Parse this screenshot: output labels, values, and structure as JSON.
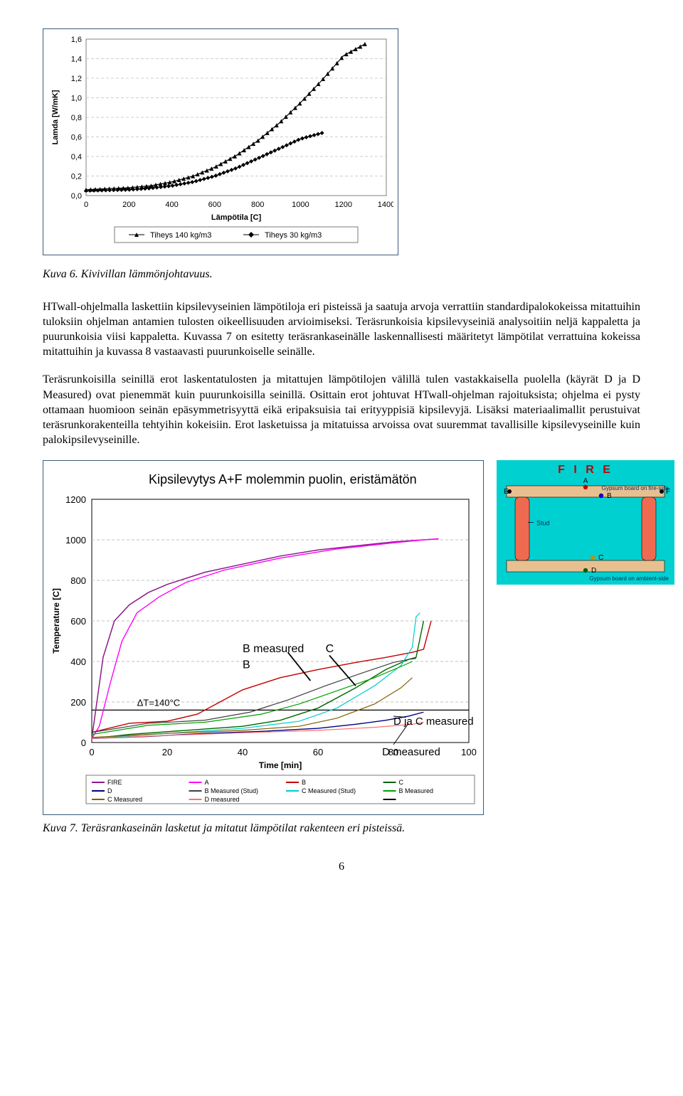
{
  "chart1": {
    "type": "line-scatter",
    "ylabel": "Lamda [W/mK]",
    "xlabel": "Lämpötila [C]",
    "xlim": [
      0,
      1400
    ],
    "xtick_step": 200,
    "ylim": [
      0,
      1.6
    ],
    "ytick_step": 0.2,
    "background": "#ffffff",
    "grid_color": "#c0c0c0",
    "axis_color": "#808080",
    "label_fontsize": 11,
    "tick_fontsize": 11,
    "series": [
      {
        "name": "Tiheys 140 kg/m3",
        "color": "#000000",
        "marker": "triangle",
        "marker_size": 3,
        "line_width": 1.2,
        "x": [
          0,
          100,
          200,
          300,
          400,
          500,
          600,
          700,
          800,
          900,
          1000,
          1100,
          1200,
          1300
        ],
        "y": [
          0.06,
          0.07,
          0.08,
          0.1,
          0.14,
          0.2,
          0.29,
          0.41,
          0.56,
          0.74,
          0.95,
          1.18,
          1.43,
          1.55
        ]
      },
      {
        "name": "Tiheys 30 kg/m3",
        "color": "#000000",
        "marker": "diamond",
        "marker_size": 3,
        "line_width": 1.2,
        "x": [
          0,
          100,
          200,
          300,
          400,
          500,
          600,
          700,
          800,
          900,
          1000,
          1100
        ],
        "y": [
          0.05,
          0.055,
          0.06,
          0.075,
          0.1,
          0.14,
          0.2,
          0.28,
          0.38,
          0.48,
          0.58,
          0.64
        ]
      }
    ],
    "legend_border": "#7a7a7a"
  },
  "caption1": "Kuva 6. Kivivillan lämmönjohtavuus.",
  "text": {
    "para1": "HTwall-ohjelmalla laskettiin kipsilevyseinien lämpötiloja eri pisteissä ja saatuja arvoja verrattiin standardipalokokeissa mitattuihin tuloksiin ohjelman antamien tulosten oikeellisuuden arvioimiseksi. Teräsrunkoisia kipsilevyseiniä analysoitiin neljä kappaletta ja puurunkoisia viisi kappaletta. Kuvassa 7 on esitetty teräsrankaseinälle laskennallisesti määritetyt lämpötilat verrattuina kokeissa mitattuihin ja kuvassa 8 vastaavasti puurunkoiselle seinälle.",
    "para2": "Teräsrunkoisilla seinillä erot laskentatulosten ja mitattujen lämpötilojen välillä tulen vastakkaisella puolella (käyrät D ja D Measured) ovat pienemmät kuin puurunkoisilla seinillä. Osittain erot johtuvat HTwall-ohjelman rajoituksista; ohjelma ei pysty ottamaan huomioon seinän epäsymmetrisyyttä eikä eripaksuisia tai erityyppisiä kipsilevyjä. Lisäksi materiaalimallit perustuivat teräsrunkorakenteilla tehtyihin kokeisiin. Erot lasketuissa ja mitatuissa arvoissa ovat suuremmat tavallisille kipsilevyseinille kuin palokipsilevyseinille."
  },
  "chart2": {
    "type": "line",
    "title": "Kipsilevytys A+F molemmin puolin, eristämätön",
    "ylabel": "Temperature [C]",
    "xlabel": "Time [min]",
    "xlim": [
      0,
      100
    ],
    "xtick_step": 20,
    "ylim": [
      0,
      1200
    ],
    "ytick_step": 200,
    "background": "#ffffff",
    "grid_color": "#c0c0c0",
    "axis_color": "#000000",
    "title_fontsize": 18,
    "label_fontsize": 12,
    "tick_fontsize": 13,
    "annotations": {
      "deltaT": "ΔT=140°C",
      "B_meas": "B measured",
      "B": "B",
      "C": "C",
      "DjaC": "D ja C measured",
      "Dmeas": "D measured"
    },
    "series": [
      {
        "name": "FIRE",
        "color": "#8b1a8b",
        "width": 1.5,
        "x": [
          0,
          3,
          6,
          10,
          15,
          20,
          30,
          40,
          50,
          60,
          70,
          80,
          88,
          92
        ],
        "y": [
          20,
          420,
          600,
          680,
          740,
          780,
          840,
          880,
          920,
          950,
          970,
          990,
          1000,
          1005
        ]
      },
      {
        "name": "A",
        "color": "#ff00ff",
        "width": 1.4,
        "x": [
          0,
          2,
          5,
          8,
          12,
          18,
          25,
          35,
          50,
          65,
          80,
          88,
          92
        ],
        "y": [
          20,
          80,
          300,
          500,
          640,
          720,
          790,
          850,
          910,
          955,
          985,
          1000,
          1005
        ]
      },
      {
        "name": "B",
        "color": "#c00000",
        "width": 1.4,
        "x": [
          0,
          10,
          20,
          28,
          35,
          40,
          50,
          60,
          70,
          78,
          85,
          88,
          90
        ],
        "y": [
          50,
          95,
          105,
          140,
          210,
          260,
          320,
          360,
          395,
          420,
          445,
          460,
          600
        ]
      },
      {
        "name": "C",
        "color": "#006600",
        "width": 1.4,
        "x": [
          0,
          10,
          25,
          40,
          50,
          60,
          70,
          78,
          84,
          86,
          88
        ],
        "y": [
          20,
          40,
          60,
          80,
          110,
          170,
          270,
          360,
          410,
          420,
          600
        ]
      },
      {
        "name": "D",
        "color": "#000080",
        "width": 1.4,
        "x": [
          0,
          15,
          30,
          45,
          60,
          70,
          78,
          84,
          88
        ],
        "y": [
          20,
          30,
          45,
          55,
          70,
          90,
          110,
          130,
          150
        ]
      },
      {
        "name": "B Measured (Stud)",
        "color": "#404040",
        "width": 1.2,
        "x": [
          0,
          15,
          30,
          42,
          52,
          62,
          72,
          80,
          84,
          86
        ],
        "y": [
          50,
          95,
          110,
          150,
          210,
          280,
          345,
          395,
          410,
          415
        ]
      },
      {
        "name": "C Measured (Stud)",
        "color": "#00cccc",
        "width": 1.2,
        "x": [
          0,
          20,
          40,
          55,
          65,
          75,
          82,
          85,
          86,
          87
        ],
        "y": [
          20,
          45,
          70,
          105,
          170,
          280,
          380,
          470,
          620,
          640
        ]
      },
      {
        "name": "B Measured",
        "color": "#00a000",
        "width": 1.2,
        "x": [
          0,
          15,
          30,
          45,
          55,
          65,
          75,
          82,
          85
        ],
        "y": [
          40,
          85,
          100,
          140,
          190,
          255,
          320,
          375,
          400
        ]
      },
      {
        "name": "C Measured",
        "color": "#806000",
        "width": 1.2,
        "x": [
          0,
          20,
          40,
          55,
          65,
          75,
          82,
          85
        ],
        "y": [
          25,
          45,
          60,
          80,
          120,
          190,
          270,
          320
        ]
      },
      {
        "name": "D measured",
        "color": "#ff7070",
        "width": 1.2,
        "x": [
          0,
          20,
          40,
          60,
          75,
          85,
          88
        ],
        "y": [
          20,
          35,
          48,
          60,
          75,
          90,
          100
        ]
      }
    ],
    "ref_line": {
      "y": 160,
      "color": "#000000",
      "width": 1.2
    },
    "legend_border": "#7a7a7a"
  },
  "diagram": {
    "bg": "#00d0d0",
    "title": "F I R E",
    "title_color": "#c00000",
    "stud_color": "#ee6a50",
    "board_color": "#e8c090",
    "point_colors": {
      "A": "#c00000",
      "B": "#0000c0",
      "C": "#c09000",
      "D": "#006000",
      "E": "#000000",
      "F": "#000000"
    },
    "labels": {
      "top": "Gypsum board on fire-side",
      "bottom": "Gypsum board on ambient-side",
      "stud": "Stud"
    }
  },
  "caption2": "Kuva 7. Teräsrankaseinän lasketut ja mitatut lämpötilat rakenteen eri pisteissä.",
  "page_number": "6"
}
